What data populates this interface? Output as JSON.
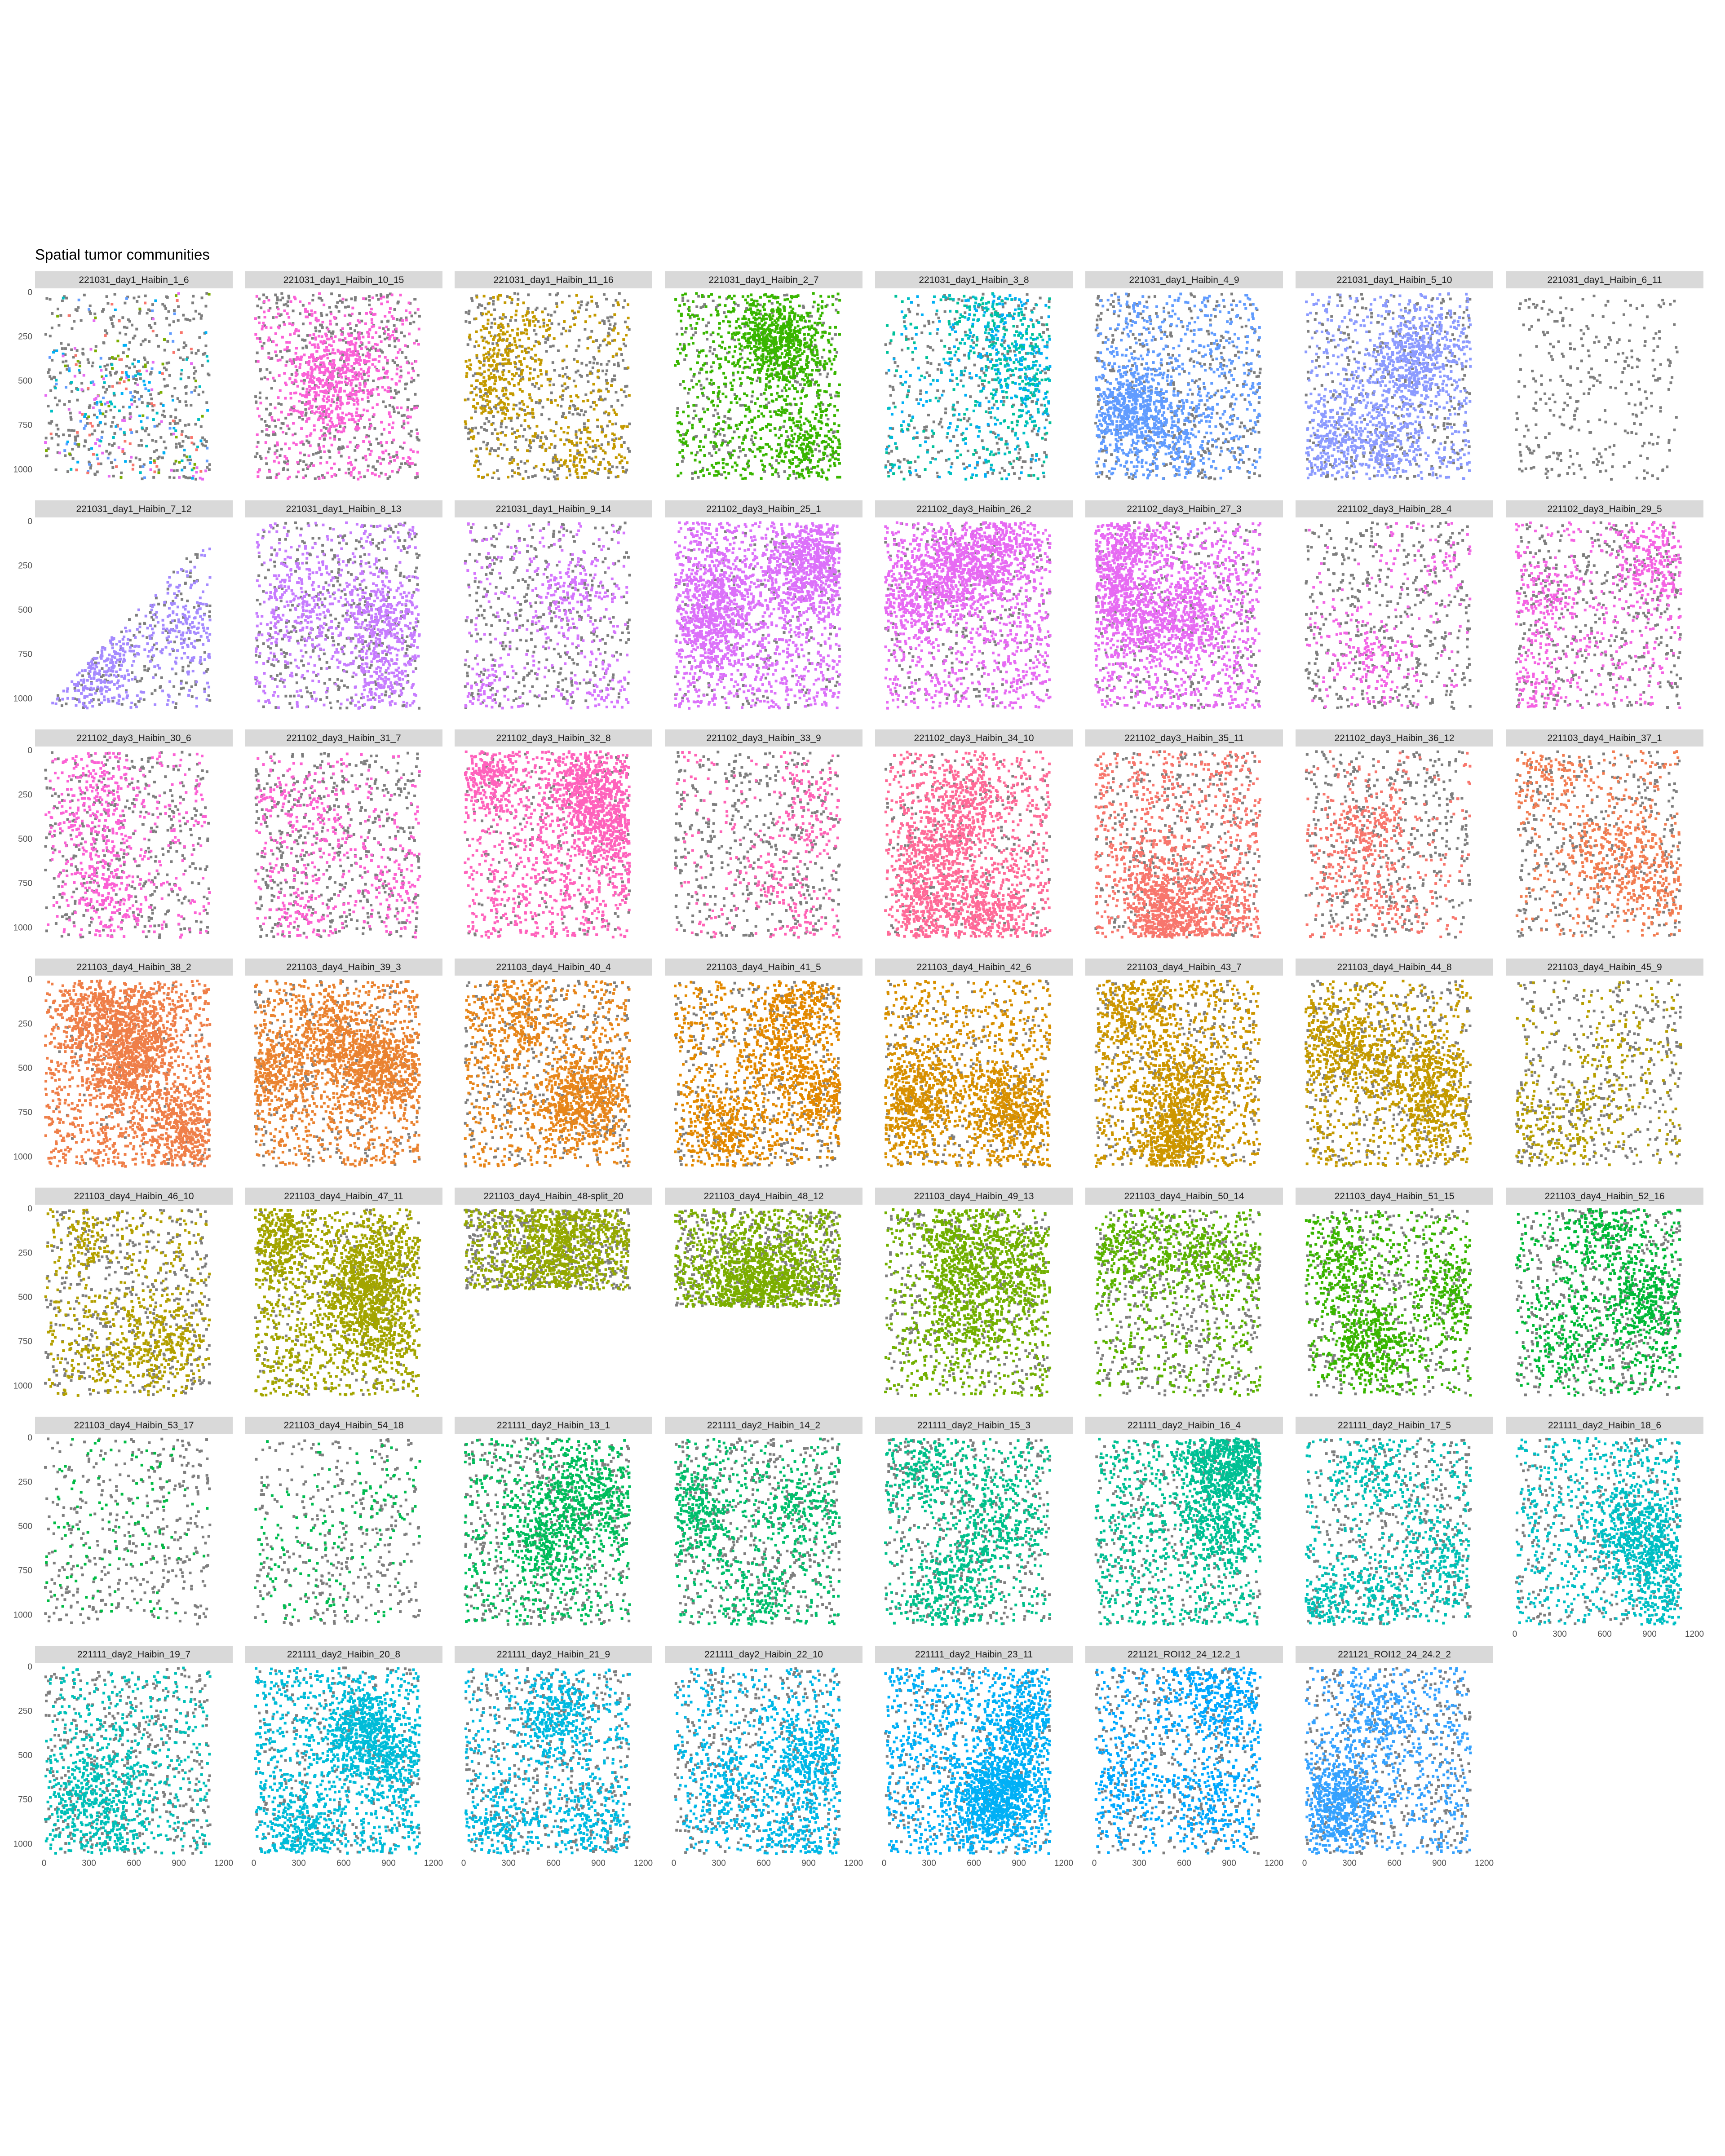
{
  "chart_data": {
    "type": "scatter",
    "title": "Spatial tumor communities",
    "layout": {
      "columns": 8,
      "rows": 7
    },
    "x_axis": {
      "range": [
        0,
        1200
      ],
      "ticks": [
        "0",
        "300",
        "600",
        "900",
        "1200"
      ]
    },
    "y_axis": {
      "range": [
        0,
        1050
      ],
      "reversed": true,
      "ticks": [
        "0",
        "250",
        "500",
        "750",
        "1000"
      ]
    },
    "grid": false,
    "legend": "none",
    "background_point_color": "#7f7f7f",
    "strip_color": "#d9d9d9",
    "panels": [
      {
        "name": "221031_day1_Haibin_1_6",
        "color": "#e76bf3",
        "density": 0.12,
        "bg_density": 0.45,
        "extra_colors": [
          "#f8766d",
          "#00b0f6",
          "#7cae00",
          "#00bfc4",
          "#619cff"
        ]
      },
      {
        "name": "221031_day1_Haibin_10_15",
        "color": "#fb61d7",
        "density": 0.35,
        "bg_density": 0.55
      },
      {
        "name": "221031_day1_Haibin_11_16",
        "color": "#c49a00",
        "density": 0.25,
        "bg_density": 0.5
      },
      {
        "name": "221031_day1_Haibin_2_7",
        "color": "#39b600",
        "density": 0.55,
        "bg_density": 0.3
      },
      {
        "name": "221031_day1_Haibin_3_8",
        "color": "#00bfc4",
        "density": 0.3,
        "bg_density": 0.35,
        "extra_colors": [
          "#00b0f6",
          "#00c19a"
        ]
      },
      {
        "name": "221031_day1_Haibin_4_9",
        "color": "#619cff",
        "density": 0.5,
        "bg_density": 0.45
      },
      {
        "name": "221031_day1_Haibin_5_10",
        "color": "#8c9bff",
        "density": 0.55,
        "bg_density": 0.4
      },
      {
        "name": "221031_day1_Haibin_6_11",
        "color": "#7f7f7f",
        "density": 0.0,
        "bg_density": 0.35
      },
      {
        "name": "221031_day1_Haibin_7_12",
        "color": "#a58aff",
        "density": 0.3,
        "bg_density": 0.35,
        "mask": "diag"
      },
      {
        "name": "221031_day1_Haibin_8_13",
        "color": "#c77cff",
        "density": 0.4,
        "bg_density": 0.45
      },
      {
        "name": "221031_day1_Haibin_9_14",
        "color": "#d575fe",
        "density": 0.2,
        "bg_density": 0.45
      },
      {
        "name": "221102_day3_Haibin_25_1",
        "color": "#dc71fa",
        "density": 0.9,
        "bg_density": 0.2
      },
      {
        "name": "221102_day3_Haibin_26_2",
        "color": "#e76bf3",
        "density": 0.75,
        "bg_density": 0.25
      },
      {
        "name": "221102_day3_Haibin_27_3",
        "color": "#e76bf3",
        "density": 0.8,
        "bg_density": 0.3
      },
      {
        "name": "221102_day3_Haibin_28_4",
        "color": "#f365e6",
        "density": 0.12,
        "bg_density": 0.5
      },
      {
        "name": "221102_day3_Haibin_29_5",
        "color": "#f564e3",
        "density": 0.3,
        "bg_density": 0.5
      },
      {
        "name": "221102_day3_Haibin_30_6",
        "color": "#fc61d5",
        "density": 0.25,
        "bg_density": 0.45
      },
      {
        "name": "221102_day3_Haibin_31_7",
        "color": "#fd61d1",
        "density": 0.2,
        "bg_density": 0.55
      },
      {
        "name": "221102_day3_Haibin_32_8",
        "color": "#ff62bc",
        "density": 0.75,
        "bg_density": 0.2
      },
      {
        "name": "221102_day3_Haibin_33_9",
        "color": "#ff63b6",
        "density": 0.15,
        "bg_density": 0.5
      },
      {
        "name": "221102_day3_Haibin_34_10",
        "color": "#ff6a98",
        "density": 0.7,
        "bg_density": 0.25
      },
      {
        "name": "221102_day3_Haibin_35_11",
        "color": "#f8766d",
        "density": 0.6,
        "bg_density": 0.4
      },
      {
        "name": "221102_day3_Haibin_36_12",
        "color": "#f8766d",
        "density": 0.2,
        "bg_density": 0.5
      },
      {
        "name": "221103_day4_Haibin_37_1",
        "color": "#f27d52",
        "density": 0.3,
        "bg_density": 0.4
      },
      {
        "name": "221103_day4_Haibin_38_2",
        "color": "#ef7f49",
        "density": 0.95,
        "bg_density": 0.1
      },
      {
        "name": "221103_day4_Haibin_39_3",
        "color": "#ea8331",
        "density": 0.8,
        "bg_density": 0.25
      },
      {
        "name": "221103_day4_Haibin_40_4",
        "color": "#e7861b",
        "density": 0.55,
        "bg_density": 0.4
      },
      {
        "name": "221103_day4_Haibin_41_5",
        "color": "#e38900",
        "density": 0.6,
        "bg_density": 0.4
      },
      {
        "name": "221103_day4_Haibin_42_6",
        "color": "#d89000",
        "density": 0.65,
        "bg_density": 0.25
      },
      {
        "name": "221103_day4_Haibin_43_7",
        "color": "#cd9600",
        "density": 0.7,
        "bg_density": 0.3
      },
      {
        "name": "221103_day4_Haibin_44_8",
        "color": "#c49a00",
        "density": 0.55,
        "bg_density": 0.4
      },
      {
        "name": "221103_day4_Haibin_45_9",
        "color": "#b79f00",
        "density": 0.15,
        "bg_density": 0.45
      },
      {
        "name": "221103_day4_Haibin_46_10",
        "color": "#b3a000",
        "density": 0.3,
        "bg_density": 0.5
      },
      {
        "name": "221103_day4_Haibin_47_11",
        "color": "#a3a500",
        "density": 0.85,
        "bg_density": 0.2
      },
      {
        "name": "221103_day4_Haibin_48-split_20",
        "color": "#95a900",
        "density": 0.45,
        "bg_density": 0.5,
        "ymax": 450
      },
      {
        "name": "221103_day4_Haibin_48_12",
        "color": "#7cae00",
        "density": 0.55,
        "bg_density": 0.45,
        "ymax": 550
      },
      {
        "name": "221103_day4_Haibin_49_13",
        "color": "#72b000",
        "density": 0.6,
        "bg_density": 0.35
      },
      {
        "name": "221103_day4_Haibin_50_14",
        "color": "#5bb300",
        "density": 0.35,
        "bg_density": 0.5
      },
      {
        "name": "221103_day4_Haibin_51_15",
        "color": "#39b600",
        "density": 0.45,
        "bg_density": 0.4
      },
      {
        "name": "221103_day4_Haibin_52_16",
        "color": "#00ba38",
        "density": 0.4,
        "bg_density": 0.5
      },
      {
        "name": "221103_day4_Haibin_53_17",
        "color": "#00bb45",
        "density": 0.05,
        "bg_density": 0.45
      },
      {
        "name": "221103_day4_Haibin_54_18",
        "color": "#00bc51",
        "density": 0.07,
        "bg_density": 0.4
      },
      {
        "name": "221111_day2_Haibin_13_1",
        "color": "#00bd5c",
        "density": 0.45,
        "bg_density": 0.5
      },
      {
        "name": "221111_day2_Haibin_14_2",
        "color": "#00be6c",
        "density": 0.35,
        "bg_density": 0.55
      },
      {
        "name": "221111_day2_Haibin_15_3",
        "color": "#00c08b",
        "density": 0.4,
        "bg_density": 0.45
      },
      {
        "name": "221111_day2_Haibin_16_4",
        "color": "#00c094",
        "density": 0.65,
        "bg_density": 0.3
      },
      {
        "name": "221111_day2_Haibin_17_5",
        "color": "#00c0b5",
        "density": 0.35,
        "bg_density": 0.45
      },
      {
        "name": "221111_day2_Haibin_18_6",
        "color": "#00bfc4",
        "density": 0.5,
        "bg_density": 0.35
      },
      {
        "name": "221111_day2_Haibin_19_7",
        "color": "#00c0b8",
        "density": 0.35,
        "bg_density": 0.5
      },
      {
        "name": "221111_day2_Haibin_20_8",
        "color": "#00bcd8",
        "density": 0.7,
        "bg_density": 0.3
      },
      {
        "name": "221111_day2_Haibin_21_9",
        "color": "#00bae0",
        "density": 0.4,
        "bg_density": 0.5
      },
      {
        "name": "221111_day2_Haibin_22_10",
        "color": "#00b8e7",
        "density": 0.45,
        "bg_density": 0.45
      },
      {
        "name": "221111_day2_Haibin_23_11",
        "color": "#00b0f6",
        "density": 0.8,
        "bg_density": 0.3
      },
      {
        "name": "221121_ROI12_24_12.2_1",
        "color": "#00a9ff",
        "density": 0.4,
        "bg_density": 0.45
      },
      {
        "name": "221121_ROI12_24_24.2_2",
        "color": "#35a2ff",
        "density": 0.5,
        "bg_density": 0.45
      }
    ]
  }
}
